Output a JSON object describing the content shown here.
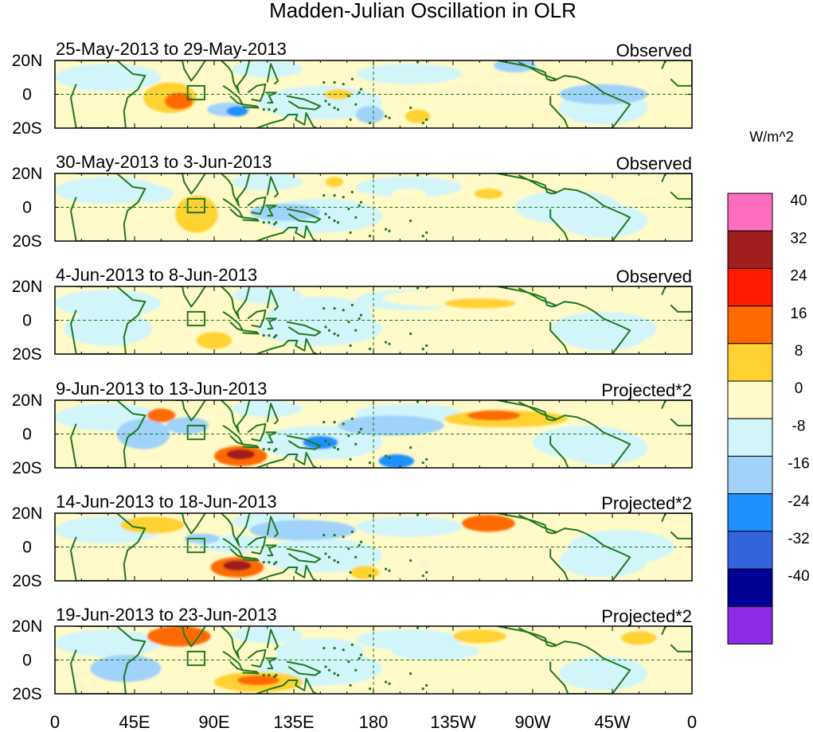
{
  "chart_data": {
    "type": "heatmap",
    "title": "Madden-Julian Oscillation in OLR",
    "units_label": "W/m^2",
    "x_ticks": [
      "0",
      "45E",
      "90E",
      "135E",
      "180",
      "135W",
      "90W",
      "45W",
      "0"
    ],
    "y_ticks": [
      "20N",
      "0",
      "20S"
    ],
    "xlim": [
      0,
      360
    ],
    "ylim": [
      -20,
      20
    ],
    "colorbar": {
      "levels": [
        "40",
        "32",
        "24",
        "16",
        "8",
        "0",
        "-8",
        "-16",
        "-24",
        "-32",
        "-40"
      ],
      "colors": [
        "#ff6ebe",
        "#a01e1e",
        "#ff1a00",
        "#ff6a00",
        "#ffd232",
        "#fffac8",
        "#d2f5fa",
        "#a0d2fa",
        "#1e90ff",
        "#3264dc",
        "#000096",
        "#8c2ce6"
      ]
    },
    "panels": [
      {
        "period": "25-May-2013 to 29-May-2013",
        "kind": "Observed",
        "anomalies": [
          {
            "lon": 65,
            "lat": -2,
            "w": 15,
            "h": 9,
            "v": 12
          },
          {
            "lon": 70,
            "lat": -4,
            "w": 8,
            "h": 5,
            "v": 20
          },
          {
            "lon": 98,
            "lat": -9,
            "w": 12,
            "h": 4,
            "v": -14
          },
          {
            "lon": 103,
            "lat": -10,
            "w": 6,
            "h": 3,
            "v": -22
          },
          {
            "lon": 160,
            "lat": 0,
            "w": 8,
            "h": 3,
            "v": 8
          },
          {
            "lon": 178,
            "lat": -12,
            "w": 8,
            "h": 5,
            "v": -10
          },
          {
            "lon": 205,
            "lat": -13,
            "w": 7,
            "h": 4,
            "v": 10
          },
          {
            "lon": 260,
            "lat": 17,
            "w": 12,
            "h": 4,
            "v": -14
          },
          {
            "lon": 310,
            "lat": 0,
            "w": 25,
            "h": 6,
            "v": -10
          },
          {
            "lon": 325,
            "lat": 8,
            "w": 15,
            "h": 4,
            "v": 4
          }
        ]
      },
      {
        "period": "30-May-2013 to 3-Jun-2013",
        "kind": "Observed",
        "anomalies": [
          {
            "lon": 80,
            "lat": -4,
            "w": 12,
            "h": 11,
            "v": 10
          },
          {
            "lon": 55,
            "lat": 8,
            "w": 12,
            "h": 5,
            "v": -8
          },
          {
            "lon": 130,
            "lat": -3,
            "w": 20,
            "h": 5,
            "v": -9
          },
          {
            "lon": 158,
            "lat": 15,
            "w": 5,
            "h": 3,
            "v": 8
          },
          {
            "lon": 200,
            "lat": 8,
            "w": 10,
            "h": 3,
            "v": 7
          },
          {
            "lon": 245,
            "lat": 8,
            "w": 8,
            "h": 3,
            "v": 8
          },
          {
            "lon": 220,
            "lat": -15,
            "w": 8,
            "h": 3,
            "v": 6
          },
          {
            "lon": 290,
            "lat": 0,
            "w": 30,
            "h": 10,
            "v": -8
          }
        ]
      },
      {
        "period": "4-Jun-2013 to 8-Jun-2013",
        "kind": "Observed",
        "anomalies": [
          {
            "lon": 90,
            "lat": -12,
            "w": 10,
            "h": 5,
            "v": 10
          },
          {
            "lon": 225,
            "lat": 13,
            "w": 40,
            "h": 5,
            "v": 5
          },
          {
            "lon": 240,
            "lat": 10,
            "w": 20,
            "h": 3,
            "v": 8
          },
          {
            "lon": 30,
            "lat": -5,
            "w": 25,
            "h": 10,
            "v": -8
          },
          {
            "lon": 150,
            "lat": 2,
            "w": 30,
            "h": 12,
            "v": -6
          },
          {
            "lon": 310,
            "lat": -5,
            "w": 30,
            "h": 10,
            "v": -6
          }
        ]
      },
      {
        "period": "9-Jun-2013 to 13-Jun-2013",
        "kind": "Projected*2",
        "anomalies": [
          {
            "lon": 105,
            "lat": -13,
            "w": 15,
            "h": 6,
            "v": 18
          },
          {
            "lon": 105,
            "lat": -12,
            "w": 8,
            "h": 3,
            "v": 36
          },
          {
            "lon": 60,
            "lat": 11,
            "w": 8,
            "h": 4,
            "v": 16
          },
          {
            "lon": 255,
            "lat": 9,
            "w": 35,
            "h": 5,
            "v": 12
          },
          {
            "lon": 248,
            "lat": 11,
            "w": 15,
            "h": 3,
            "v": 20
          },
          {
            "lon": 50,
            "lat": 0,
            "w": 15,
            "h": 9,
            "v": -12
          },
          {
            "lon": 75,
            "lat": 5,
            "w": 12,
            "h": 5,
            "v": -14
          },
          {
            "lon": 150,
            "lat": -5,
            "w": 10,
            "h": 4,
            "v": -18
          },
          {
            "lon": 193,
            "lat": -16,
            "w": 10,
            "h": 4,
            "v": -20
          },
          {
            "lon": 190,
            "lat": 5,
            "w": 30,
            "h": 6,
            "v": -9
          },
          {
            "lon": 300,
            "lat": -5,
            "w": 30,
            "h": 10,
            "v": -6
          }
        ]
      },
      {
        "period": "14-Jun-2013 to 18-Jun-2013",
        "kind": "Projected*2",
        "anomalies": [
          {
            "lon": 103,
            "lat": -12,
            "w": 15,
            "h": 6,
            "v": 18
          },
          {
            "lon": 103,
            "lat": -11,
            "w": 8,
            "h": 3,
            "v": 32
          },
          {
            "lon": 55,
            "lat": 13,
            "w": 18,
            "h": 5,
            "v": 14
          },
          {
            "lon": 245,
            "lat": 14,
            "w": 15,
            "h": 5,
            "v": 18
          },
          {
            "lon": 175,
            "lat": -15,
            "w": 8,
            "h": 4,
            "v": 14
          },
          {
            "lon": 83,
            "lat": 5,
            "w": 10,
            "h": 3,
            "v": -14
          },
          {
            "lon": 140,
            "lat": 10,
            "w": 30,
            "h": 6,
            "v": -9
          },
          {
            "lon": 100,
            "lat": 2,
            "w": 20,
            "h": 5,
            "v": -8
          },
          {
            "lon": 320,
            "lat": 0,
            "w": 30,
            "h": 10,
            "v": -5
          }
        ]
      },
      {
        "period": "19-Jun-2013 to 23-Jun-2013",
        "kind": "Projected*2",
        "anomalies": [
          {
            "lon": 70,
            "lat": 14,
            "w": 18,
            "h": 6,
            "v": 16
          },
          {
            "lon": 70,
            "lat": 16,
            "w": 8,
            "h": 4,
            "v": 20
          },
          {
            "lon": 115,
            "lat": -13,
            "w": 25,
            "h": 6,
            "v": 14
          },
          {
            "lon": 115,
            "lat": -12,
            "w": 12,
            "h": 3,
            "v": 22
          },
          {
            "lon": 240,
            "lat": 14,
            "w": 15,
            "h": 4,
            "v": 10
          },
          {
            "lon": 330,
            "lat": 13,
            "w": 10,
            "h": 4,
            "v": 8
          },
          {
            "lon": 40,
            "lat": -5,
            "w": 20,
            "h": 8,
            "v": -9
          },
          {
            "lon": 150,
            "lat": 5,
            "w": 25,
            "h": 8,
            "v": -7
          },
          {
            "lon": 215,
            "lat": 5,
            "w": 25,
            "h": 5,
            "v": -6
          }
        ]
      }
    ]
  }
}
